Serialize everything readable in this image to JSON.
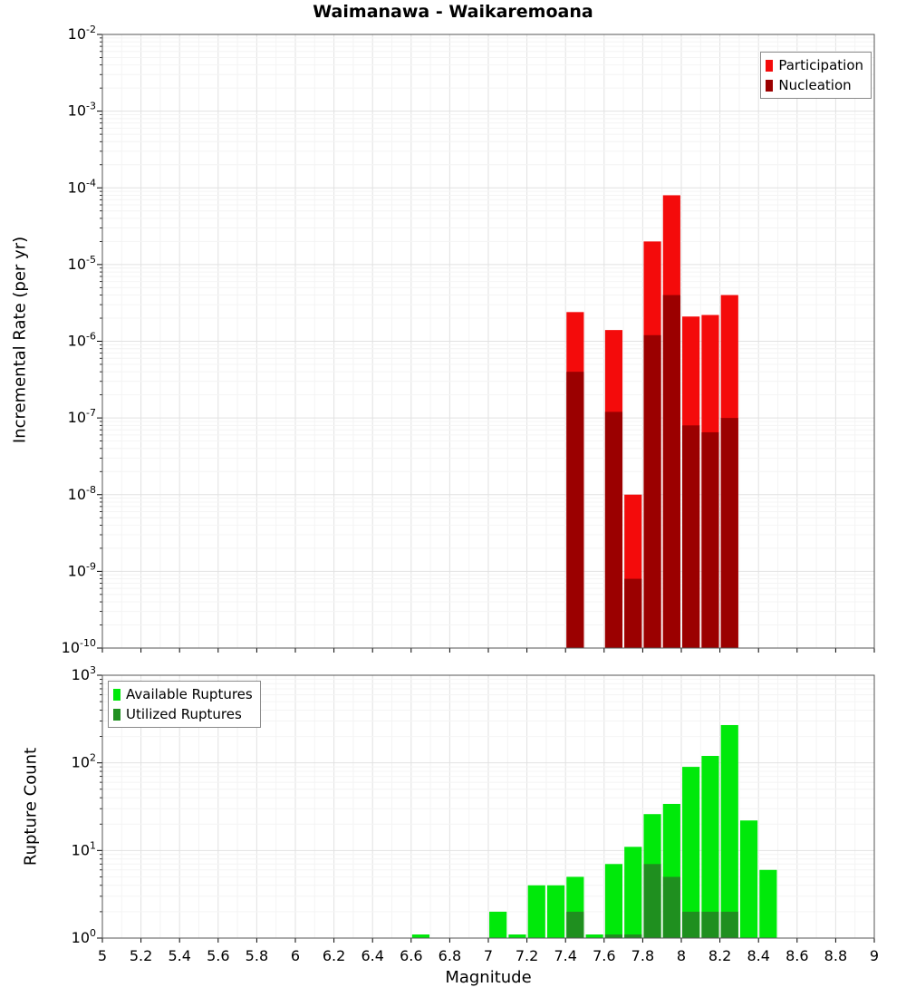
{
  "title": "Waimanawa - Waikaremoana",
  "chart_data": [
    {
      "type": "bar",
      "panel": "incremental-rate",
      "ylabel": "Incremental Rate (per yr)",
      "yscale": "log",
      "ylim": [
        1e-10,
        0.01
      ],
      "xlim": [
        5,
        9
      ],
      "grid": true,
      "legend_position": "top-right",
      "bar_width": 0.09,
      "yticks_exponents": [
        -2,
        -3,
        -4,
        -5,
        -6,
        -7,
        -8,
        -9,
        -10
      ],
      "x": [
        7.45,
        7.65,
        7.75,
        7.85,
        7.95,
        8.05,
        8.15,
        8.25
      ],
      "series": [
        {
          "name": "Participation",
          "color": "#f40b0b",
          "values": [
            2.4e-06,
            1.4e-06,
            1e-08,
            2e-05,
            8e-05,
            2.1e-06,
            2.2e-06,
            4e-06
          ]
        },
        {
          "name": "Nucleation",
          "color": "#9b0000",
          "values": [
            4e-07,
            1.2e-07,
            8e-10,
            1.2e-06,
            4e-06,
            8e-08,
            6.5e-08,
            1e-07
          ]
        }
      ]
    },
    {
      "type": "bar",
      "panel": "rupture-count",
      "ylabel": "Rupture Count",
      "xlabel": "Magnitude",
      "yscale": "log",
      "ylim": [
        1,
        1000
      ],
      "xlim": [
        5,
        9
      ],
      "grid": true,
      "legend_position": "top-left",
      "bar_width": 0.09,
      "yticks_exponents": [
        0,
        1,
        2,
        3
      ],
      "xtick_labels": [
        "5",
        "5.2",
        "5.4",
        "5.6",
        "5.8",
        "6",
        "6.2",
        "6.4",
        "6.6",
        "6.8",
        "7",
        "7.2",
        "7.4",
        "7.6",
        "7.8",
        "8",
        "8.2",
        "8.4",
        "8.6",
        "8.8",
        "9"
      ],
      "x": [
        6.65,
        7.05,
        7.15,
        7.25,
        7.35,
        7.45,
        7.55,
        7.65,
        7.75,
        7.85,
        7.95,
        8.05,
        8.15,
        8.25,
        8.35,
        8.45
      ],
      "series": [
        {
          "name": "Available Ruptures",
          "color": "#00e90a",
          "values": [
            1,
            2,
            1,
            4,
            4,
            5,
            1,
            7,
            11,
            26,
            34,
            90,
            120,
            270,
            22,
            6
          ]
        },
        {
          "name": "Utilized Ruptures",
          "color": "#1f8f1f",
          "values": [
            0,
            0,
            0,
            0,
            0,
            2,
            0,
            1,
            1,
            7,
            5,
            2,
            2,
            2,
            0,
            0
          ]
        }
      ]
    }
  ]
}
